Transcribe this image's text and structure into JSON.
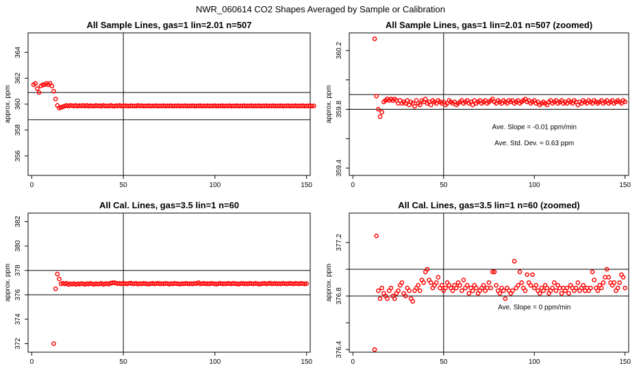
{
  "figure_title": "NWR_060614  CO2 Shapes Averaged by Sample or Calibration",
  "chart_data": [
    {
      "type": "scatter",
      "title": "All Sample Lines, gas=1 lin=2.01 n=507",
      "xlabel": "",
      "ylabel": "approx. ppm",
      "xlim": [
        -2,
        152
      ],
      "ylim": [
        354.5,
        365.5
      ],
      "xticks": [
        0,
        50,
        100,
        150
      ],
      "yticks": [
        356,
        358,
        360,
        362,
        364
      ],
      "vline": 50,
      "hlines": [
        358.8,
        360.9
      ],
      "annotations": [],
      "series": [
        {
          "x_start": 1,
          "x_step": 1,
          "y": [
            361.5,
            361.6,
            361.2,
            360.9,
            361.4,
            361.5,
            361.5,
            361.6,
            361.5,
            361.6,
            361.4,
            361.0,
            360.4,
            359.9,
            359.7,
            359.75,
            359.8,
            359.85,
            359.9,
            359.85,
            359.9,
            359.88,
            359.86,
            359.9,
            359.85,
            359.88,
            359.86,
            359.9,
            359.85,
            359.9,
            359.84,
            359.88,
            359.86,
            359.85,
            359.9,
            359.86,
            359.88,
            359.84,
            359.9,
            359.86,
            359.87,
            359.85,
            359.9,
            359.86,
            359.84,
            359.88,
            359.86,
            359.9,
            359.85,
            359.87,
            359.88,
            359.86,
            359.85,
            359.88,
            359.86,
            359.87,
            359.85,
            359.9,
            359.86,
            359.88,
            359.85,
            359.87,
            359.86,
            359.88,
            359.85,
            359.87,
            359.86,
            359.88,
            359.85,
            359.87,
            359.86,
            359.88,
            359.85,
            359.87,
            359.86,
            359.88,
            359.85,
            359.87,
            359.86,
            359.88,
            359.85,
            359.87,
            359.86,
            359.88,
            359.85,
            359.87,
            359.86,
            359.88,
            359.85,
            359.87,
            359.86,
            359.88,
            359.85,
            359.87,
            359.86,
            359.88,
            359.85,
            359.87,
            359.86,
            359.88,
            359.85,
            359.87,
            359.86,
            359.88,
            359.85,
            359.87,
            359.86,
            359.88,
            359.85,
            359.87,
            359.86,
            359.88,
            359.85,
            359.87,
            359.86,
            359.88,
            359.85,
            359.87,
            359.86,
            359.88,
            359.85,
            359.87,
            359.86,
            359.88,
            359.85,
            359.87,
            359.86,
            359.88,
            359.85,
            359.87,
            359.86,
            359.88,
            359.85,
            359.87,
            359.86,
            359.88,
            359.85,
            359.87,
            359.86,
            359.88,
            359.85,
            359.87,
            359.86,
            359.88,
            359.85,
            359.87,
            359.86,
            359.88,
            359.85,
            359.87,
            359.86,
            359.88,
            359.85,
            359.87
          ]
        }
      ]
    },
    {
      "type": "scatter",
      "title": "All Sample Lines, gas=1 lin=2.01 n=507 (zoomed)",
      "xlabel": "",
      "ylabel": "approx. ppm",
      "xlim": [
        -2,
        152
      ],
      "ylim": [
        359.35,
        360.32
      ],
      "xticks": [
        0,
        50,
        100,
        150
      ],
      "yticks": [
        359.4,
        359.6,
        359.8,
        360.0,
        360.2
      ],
      "ytick_labels": [
        "359.4",
        "",
        "359.8",
        "",
        "360.2"
      ],
      "vline": 50,
      "hlines": [
        359.8,
        359.9
      ],
      "annotations": [
        {
          "text": "Ave. Slope =  -0.01  ppm/min",
          "x": 100,
          "y": 359.665
        },
        {
          "text": "Ave. Std. Dev. =  0.63  ppm",
          "x": 100,
          "y": 359.555
        }
      ],
      "series": [
        {
          "x_start": 12,
          "x_step": 1,
          "y": [
            360.28,
            359.89,
            359.8,
            359.75,
            359.78,
            359.85,
            359.86,
            359.87,
            359.86,
            359.87,
            359.86,
            359.87,
            359.86,
            359.84,
            359.86,
            359.84,
            359.85,
            359.84,
            359.86,
            359.83,
            359.85,
            359.84,
            359.82,
            359.86,
            359.84,
            359.83,
            359.86,
            359.85,
            359.87,
            359.84,
            359.85,
            359.83,
            359.86,
            359.85,
            359.84,
            359.86,
            359.85,
            359.84,
            359.85,
            359.83,
            359.84,
            359.86,
            359.85,
            359.84,
            359.85,
            359.83,
            359.84,
            359.85,
            359.86,
            359.84,
            359.85,
            359.86,
            359.84,
            359.85,
            359.83,
            359.86,
            359.84,
            359.85,
            359.86,
            359.84,
            359.85,
            359.86,
            359.84,
            359.85,
            359.86,
            359.87,
            359.85,
            359.84,
            359.86,
            359.85,
            359.84,
            359.86,
            359.85,
            359.84,
            359.86,
            359.85,
            359.86,
            359.84,
            359.85,
            359.86,
            359.84,
            359.85,
            359.86,
            359.87,
            359.85,
            359.86,
            359.84,
            359.85,
            359.86,
            359.84,
            359.85,
            359.83,
            359.84,
            359.85,
            359.84,
            359.83,
            359.85,
            359.86,
            359.84,
            359.85,
            359.86,
            359.84,
            359.85,
            359.86,
            359.84,
            359.85,
            359.84,
            359.86,
            359.85,
            359.84,
            359.86,
            359.85,
            359.83,
            359.85,
            359.84,
            359.86,
            359.85,
            359.84,
            359.86,
            359.85,
            359.84,
            359.86,
            359.85,
            359.84,
            359.85,
            359.86,
            359.84,
            359.85,
            359.86,
            359.84,
            359.85,
            359.86,
            359.84,
            359.85,
            359.86,
            359.85,
            359.84,
            359.86,
            359.85
          ]
        }
      ]
    },
    {
      "type": "scatter",
      "title": "All Cal. Lines, gas=3.5 lin=1 n=60",
      "xlabel": "",
      "ylabel": "approx. ppm",
      "xlim": [
        -2,
        152
      ],
      "ylim": [
        371.3,
        382.7
      ],
      "xticks": [
        0,
        50,
        100,
        150
      ],
      "yticks": [
        372,
        374,
        376,
        378,
        380,
        382
      ],
      "vline": 50,
      "hlines": [
        376.0,
        378.0
      ],
      "annotations": [],
      "series": [
        {
          "x_start": 12,
          "x_step": 1,
          "y": [
            372.0,
            376.5,
            377.7,
            377.3,
            376.9,
            376.95,
            376.9,
            376.95,
            376.85,
            376.9,
            376.88,
            376.92,
            376.86,
            376.9,
            376.88,
            376.92,
            376.9,
            376.86,
            376.92,
            376.88,
            376.94,
            376.9,
            376.86,
            376.92,
            376.88,
            376.9,
            376.94,
            376.86,
            376.9,
            376.92,
            376.88,
            376.95,
            376.98,
            377.0,
            376.96,
            376.92,
            376.94,
            376.9,
            376.95,
            376.92,
            376.9,
            376.94,
            376.96,
            376.9,
            376.92,
            376.94,
            376.88,
            376.92,
            376.9,
            376.94,
            376.92,
            376.9,
            376.88,
            376.92,
            376.94,
            376.9,
            376.92,
            376.95,
            376.9,
            376.92,
            376.9,
            376.94,
            376.92,
            376.88,
            376.92,
            376.9,
            376.94,
            376.92,
            376.9,
            376.88,
            376.92,
            376.9,
            376.94,
            376.92,
            376.9,
            376.92,
            376.9,
            376.94,
            376.92,
            377.0,
            376.9,
            376.92,
            376.94,
            376.9,
            376.92,
            376.9,
            376.94,
            376.92,
            376.9,
            376.88,
            376.92,
            376.94,
            376.9,
            376.92,
            376.9,
            376.94,
            376.92,
            376.9,
            376.94,
            376.92,
            376.9,
            376.88,
            376.92,
            376.94,
            376.9,
            376.92,
            376.9,
            376.94,
            376.92,
            376.9,
            376.94,
            376.92,
            376.88,
            376.9,
            376.92,
            376.94,
            376.9,
            376.92,
            376.96,
            376.9,
            376.92,
            376.94,
            376.9,
            376.92,
            376.9,
            376.94,
            376.92,
            376.9,
            376.92,
            376.94,
            376.92,
            376.9,
            376.94,
            376.92,
            376.9,
            376.94,
            376.92,
            376.9,
            376.92
          ]
        }
      ]
    },
    {
      "type": "scatter",
      "title": "All Cal. Lines, gas=3.5 lin=1 n=60 (zoomed)",
      "xlabel": "",
      "ylabel": "approx. ppm",
      "xlim": [
        -2,
        152
      ],
      "ylim": [
        376.38,
        377.42
      ],
      "xticks": [
        0,
        50,
        100,
        150
      ],
      "yticks": [
        376.4,
        376.6,
        376.8,
        377.0,
        377.2
      ],
      "ytick_labels": [
        "376.4",
        "",
        "376.8",
        "",
        "377.2"
      ],
      "vline": 50,
      "hlines": [
        376.8,
        377.0
      ],
      "annotations": [
        {
          "text": "Ave. Slope =  0  ppm/min",
          "x": 100,
          "y": 376.7
        }
      ],
      "series": [
        {
          "x_start": 12,
          "x_step": 1,
          "y": [
            376.4,
            377.25,
            376.84,
            376.78,
            376.86,
            376.82,
            376.8,
            376.78,
            376.84,
            376.86,
            376.8,
            376.78,
            376.82,
            376.84,
            376.88,
            376.9,
            376.82,
            376.8,
            376.86,
            376.84,
            376.78,
            376.76,
            376.84,
            376.86,
            376.88,
            376.84,
            376.92,
            376.9,
            376.98,
            377.0,
            376.92,
            376.9,
            376.86,
            376.88,
            376.9,
            376.94,
            376.86,
            376.88,
            376.84,
            376.86,
            376.9,
            376.88,
            376.86,
            376.84,
            376.88,
            376.86,
            376.9,
            376.88,
            376.84,
            376.92,
            376.86,
            376.88,
            376.82,
            376.86,
            376.84,
            376.88,
            376.86,
            376.82,
            376.84,
            376.86,
            376.88,
            376.84,
            376.86,
            376.9,
            376.86,
            376.98,
            376.98,
            376.88,
            376.84,
            376.82,
            376.86,
            376.84,
            376.78,
            376.86,
            376.84,
            376.82,
            376.84,
            377.06,
            376.86,
            376.88,
            376.98,
            376.9,
            376.86,
            376.84,
            376.96,
            376.9,
            376.88,
            376.96,
            376.86,
            376.88,
            376.84,
            376.82,
            376.86,
            376.84,
            376.88,
            376.86,
            376.82,
            376.84,
            376.86,
            376.9,
            376.84,
            376.88,
            376.86,
            376.82,
            376.86,
            376.84,
            376.86,
            376.82,
            376.88,
            376.86,
            376.84,
            376.86,
            376.9,
            376.84,
            376.86,
            376.88,
            376.84,
            376.86,
            376.84,
            376.86,
            376.98,
            376.92,
            376.86,
            376.84,
            376.88,
            376.86,
            376.9,
            376.94,
            377.0,
            376.94,
            376.9,
            376.88,
            376.9,
            376.84,
            376.86,
            376.9,
            376.96,
            376.94,
            376.86
          ]
        }
      ]
    }
  ]
}
